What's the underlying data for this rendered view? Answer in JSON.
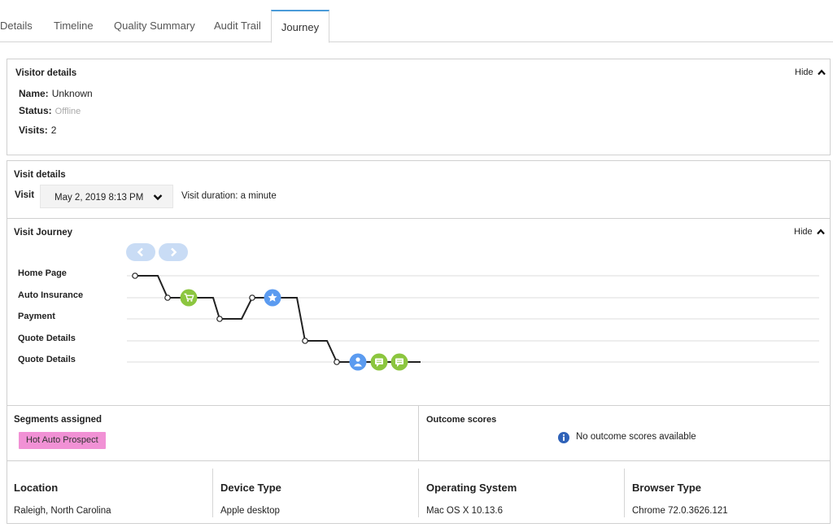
{
  "tabs": [
    {
      "label": "Details",
      "active": false
    },
    {
      "label": "Timeline",
      "active": false
    },
    {
      "label": "Quality Summary",
      "active": false
    },
    {
      "label": "Audit Trail",
      "active": false
    },
    {
      "label": "Journey",
      "active": true
    }
  ],
  "visitor_details": {
    "title": "Visitor details",
    "hide_label": "Hide",
    "name_label": "Name:",
    "name_value": "Unknown",
    "status_label": "Status:",
    "status_value": "Offline",
    "visits_label": "Visits:",
    "visits_value": "2"
  },
  "visit_details": {
    "title": "Visit details",
    "visit_label": "Visit",
    "visit_selected": "May 2, 2019 8:13 PM",
    "duration": "Visit duration: a minute"
  },
  "visit_journey": {
    "title": "Visit Journey",
    "hide_label": "Hide",
    "rows": [
      "Home Page",
      "Auto Insurance",
      "Payment",
      "Quote Details",
      "Quote Details"
    ],
    "events": [
      {
        "icon": "cart-icon",
        "color": "#8cc63f"
      },
      {
        "icon": "star-icon",
        "color": "#5b9bf0"
      },
      {
        "icon": "person-icon",
        "color": "#5b9bf0"
      },
      {
        "icon": "chat-icon",
        "color": "#8cc63f"
      },
      {
        "icon": "chat-icon",
        "color": "#8cc63f"
      }
    ]
  },
  "segments": {
    "title": "Segments assigned",
    "items": [
      "Hot Auto Prospect"
    ],
    "badge_color": "#f191d5"
  },
  "outcome": {
    "title": "Outcome scores",
    "empty_text": "No outcome scores available"
  },
  "info": {
    "location_label": "Location",
    "location_value": "Raleigh, North Carolina",
    "device_label": "Device Type",
    "device_value": "Apple desktop",
    "os_label": "Operating System",
    "os_value": "Mac OS X 10.13.6",
    "browser_label": "Browser Type",
    "browser_value": "Chrome 72.0.3626.121"
  },
  "colors": {
    "accent": "#4a9bd9",
    "nav_button": "#c9dcf5",
    "green_event": "#8cc63f",
    "blue_event": "#5b9bf0",
    "info_icon": "#2f62b8"
  }
}
